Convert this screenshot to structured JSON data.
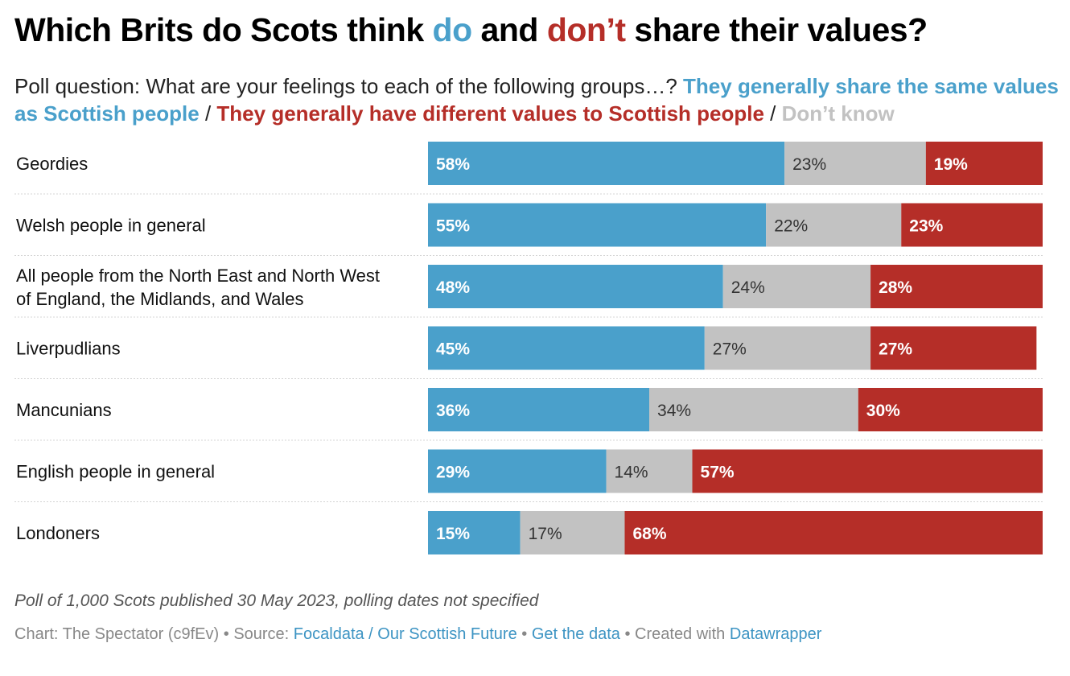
{
  "title": {
    "prefix": "Which Brits do Scots think ",
    "do": "do",
    "middle": " and ",
    "dont": "don’t",
    "suffix": " share their values?"
  },
  "subtitle": {
    "question": "Poll question: What are your feelings to each of the following groups…? ",
    "share": "They generally share the same values as Scottish people",
    "sep1": " / ",
    "different": "They generally have different values to Scottish people",
    "sep2": " / ",
    "dont_know": "Don’t know"
  },
  "colors": {
    "share": "#4aa0cb",
    "dont_know": "#c2c2c2",
    "different": "#b52e28"
  },
  "chart_data": {
    "type": "bar",
    "orientation": "horizontal",
    "stacked": true,
    "categories": [
      [
        "Geordies"
      ],
      [
        "Welsh people in general"
      ],
      [
        "All people from the North East and North West",
        "of England, the Midlands, and Wales"
      ],
      [
        "Liverpudlians"
      ],
      [
        "Mancunians"
      ],
      [
        "English people in general"
      ],
      [
        "Londoners"
      ]
    ],
    "series": [
      {
        "name": "They generally share the same values as Scottish people",
        "key": "share",
        "values": [
          58,
          55,
          48,
          45,
          36,
          29,
          15
        ]
      },
      {
        "name": "Don’t know",
        "key": "dont_know",
        "values": [
          23,
          22,
          24,
          27,
          34,
          14,
          17
        ]
      },
      {
        "name": "They generally have different values to Scottish people",
        "key": "different",
        "values": [
          19,
          23,
          28,
          27,
          30,
          57,
          68
        ]
      }
    ],
    "value_suffix": "%",
    "xlim": [
      0,
      100
    ]
  },
  "notes": "Poll of 1,000 Scots published 30 May 2023, polling dates not specified",
  "footer": {
    "chart_by": "Chart: The Spectator (c9fEv)",
    "dot1": " • ",
    "source_label": "Source: ",
    "source_link": "Focaldata / Our Scottish Future",
    "dot2": " • ",
    "get_data": "Get the data",
    "dot3": " • ",
    "created_with": "Created with ",
    "datawrapper": "Datawrapper"
  }
}
